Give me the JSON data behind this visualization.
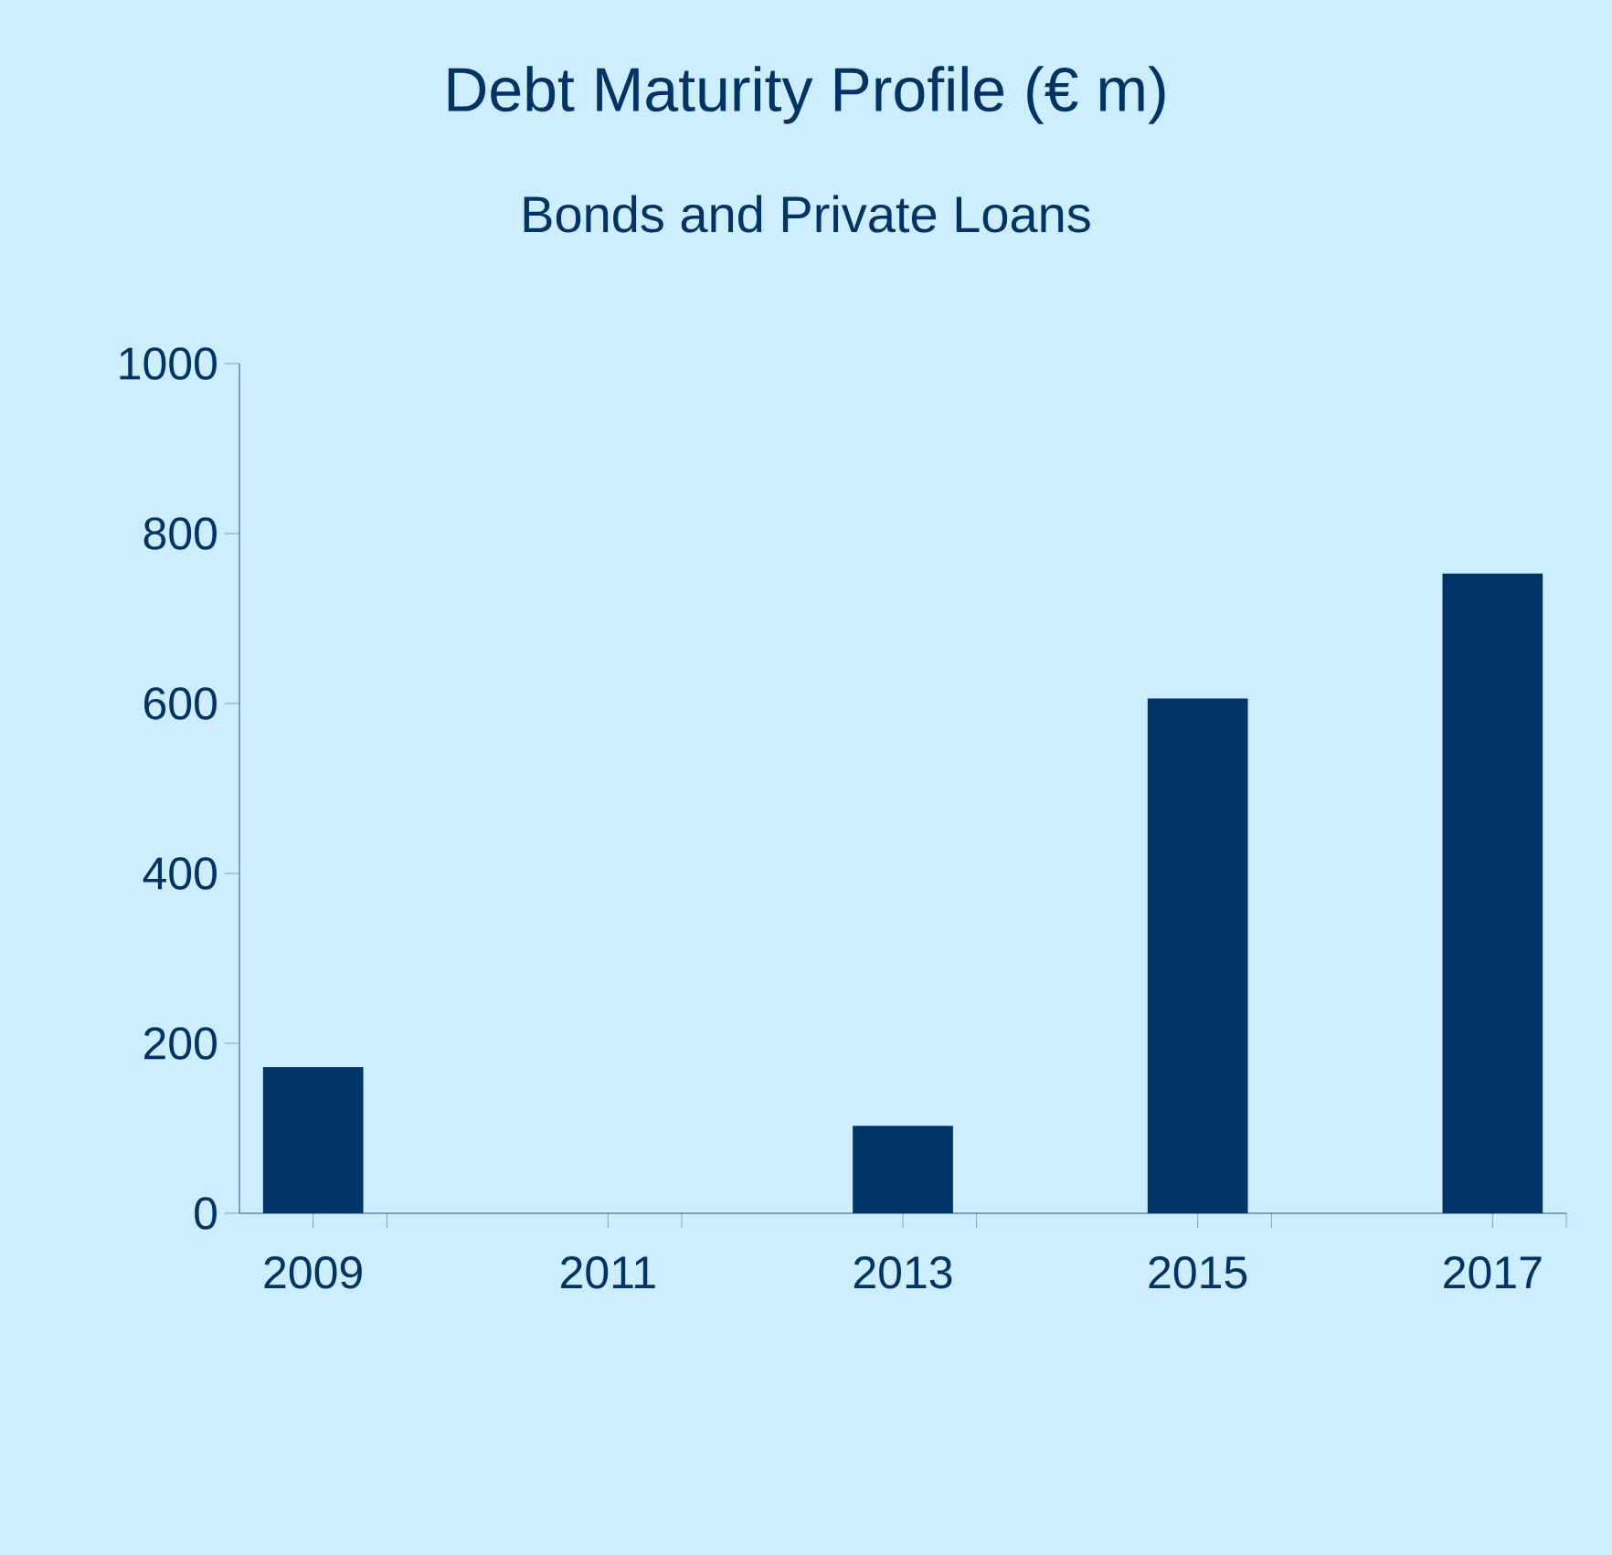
{
  "chart_data": {
    "type": "bar",
    "title": "Debt Maturity Profile (€ m)",
    "subtitle": "Bonds and Private Loans",
    "categories": [
      "2009",
      null,
      "2011",
      null,
      "2013",
      null,
      "2015",
      null,
      "2017"
    ],
    "values": [
      172,
      0,
      0,
      0,
      103,
      0,
      606,
      0,
      753
    ],
    "color": "#003366",
    "ylim": [
      0,
      1000
    ],
    "yticks": [
      0,
      200,
      400,
      600,
      800,
      1000
    ],
    "grid": false
  }
}
